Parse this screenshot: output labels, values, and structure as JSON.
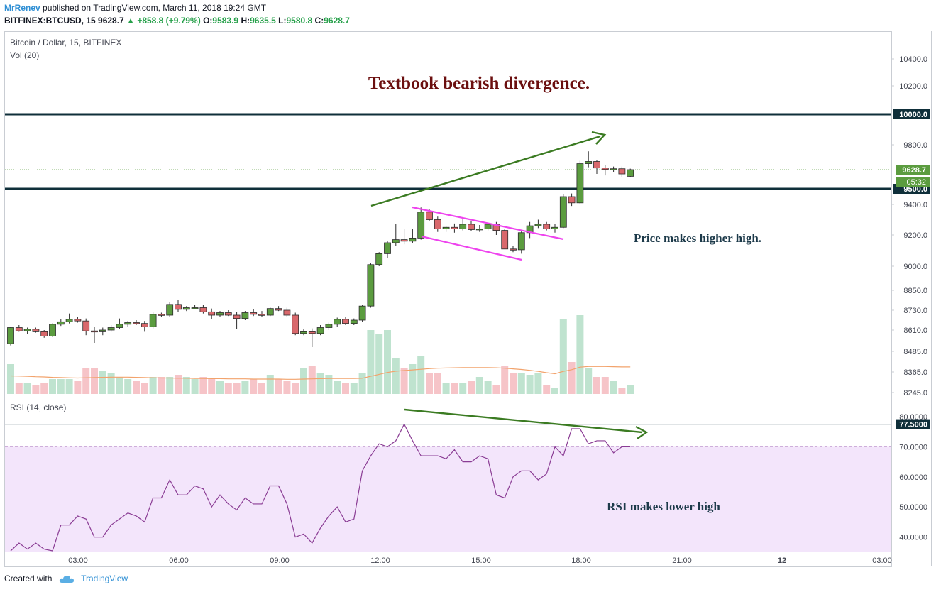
{
  "header": {
    "author": "MrRenev",
    "published": "published on TradingView.com, March 11, 2018 19:24 GMT",
    "symbol": "BITFINEX:BTCUSD, 15",
    "last": "9628.7",
    "change": "+858.8 (+9.79%)",
    "o_label": "O:",
    "o": "9583.9",
    "h_label": "H:",
    "h": "9635.5",
    "l_label": "L:",
    "l": "9580.8",
    "c_label": "C:",
    "c": "9628.7"
  },
  "footer": {
    "created_with": "Created with",
    "brand": "TradingView",
    "icon": "tradingview-cloud-icon"
  },
  "colors": {
    "up": "#5b9c3f",
    "down": "#d9686c",
    "vol_up": "#bfe3cf",
    "vol_down": "#f6c4c8",
    "level": "#0f2f3a",
    "arrow": "#3b7b22",
    "channel": "#ee44ee",
    "rsi": "#8a3c94",
    "rsi_band": "#f3e5fb",
    "ma": "#f2a36c"
  },
  "chart_data": [
    {
      "type": "candlestick",
      "title": "Bitcoin / Dollar, 15, BITFINEX",
      "subtitle": "Vol (20)",
      "annotation_title": "Textbook bearish divergence.",
      "annotation_price": "Price makes higher high.",
      "y_ticks": [
        "10400.0",
        "10200.0",
        "9800.0",
        "9400.0",
        "9200.0",
        "9000.0",
        "8850.0",
        "8730.0",
        "8610.0",
        "8485.0",
        "8365.0",
        "8245.0"
      ],
      "x_ticks": [
        "03:00",
        "06:00",
        "09:00",
        "12:00",
        "15:00",
        "18:00",
        "21:00",
        "12",
        "03:00"
      ],
      "levels": [
        {
          "label": "10000.0",
          "value": 10000
        },
        {
          "label": "9500.0",
          "value": 9500
        }
      ],
      "last_price_label": "9628.7",
      "countdown_label": "05:32",
      "candles": [
        [
          8530,
          8630,
          8520,
          8625
        ],
        [
          8625,
          8640,
          8600,
          8605
        ],
        [
          8605,
          8625,
          8585,
          8615
        ],
        [
          8615,
          8625,
          8595,
          8600
        ],
        [
          8600,
          8610,
          8565,
          8575
        ],
        [
          8575,
          8650,
          8570,
          8645
        ],
        [
          8645,
          8675,
          8635,
          8660
        ],
        [
          8660,
          8710,
          8650,
          8675
        ],
        [
          8675,
          8690,
          8655,
          8665
        ],
        [
          8665,
          8680,
          8580,
          8605
        ],
        [
          8605,
          8630,
          8535,
          8600
        ],
        [
          8600,
          8625,
          8580,
          8610
        ],
        [
          8610,
          8640,
          8600,
          8625
        ],
        [
          8625,
          8680,
          8615,
          8645
        ],
        [
          8645,
          8665,
          8630,
          8655
        ],
        [
          8655,
          8670,
          8640,
          8650
        ],
        [
          8650,
          8665,
          8600,
          8630
        ],
        [
          8630,
          8720,
          8620,
          8705
        ],
        [
          8705,
          8715,
          8690,
          8700
        ],
        [
          8700,
          8780,
          8690,
          8765
        ],
        [
          8765,
          8790,
          8720,
          8735
        ],
        [
          8735,
          8755,
          8725,
          8745
        ],
        [
          8745,
          8760,
          8735,
          8745
        ],
        [
          8745,
          8760,
          8710,
          8720
        ],
        [
          8720,
          8740,
          8675,
          8700
        ],
        [
          8700,
          8725,
          8690,
          8715
        ],
        [
          8715,
          8730,
          8695,
          8700
        ],
        [
          8700,
          8720,
          8615,
          8680
        ],
        [
          8680,
          8725,
          8670,
          8715
        ],
        [
          8715,
          8735,
          8695,
          8705
        ],
        [
          8705,
          8725,
          8690,
          8700
        ],
        [
          8700,
          8745,
          8695,
          8740
        ],
        [
          8740,
          8755,
          8725,
          8730
        ],
        [
          8730,
          8745,
          8690,
          8700
        ],
        [
          8700,
          8715,
          8580,
          8590
        ],
        [
          8590,
          8615,
          8580,
          8600
        ],
        [
          8600,
          8620,
          8510,
          8590
        ],
        [
          8590,
          8640,
          8580,
          8625
        ],
        [
          8625,
          8655,
          8610,
          8645
        ],
        [
          8645,
          8685,
          8630,
          8675
        ],
        [
          8675,
          8690,
          8640,
          8650
        ],
        [
          8650,
          8680,
          8640,
          8670
        ],
        [
          8670,
          8760,
          8660,
          8755
        ],
        [
          8755,
          9020,
          8745,
          9010
        ],
        [
          9010,
          9090,
          9000,
          9080
        ],
        [
          9080,
          9160,
          9050,
          9150
        ],
        [
          9150,
          9270,
          9130,
          9170
        ],
        [
          9170,
          9240,
          9140,
          9160
        ],
        [
          9160,
          9240,
          9150,
          9180
        ],
        [
          9180,
          9380,
          9170,
          9350
        ],
        [
          9350,
          9370,
          9290,
          9300
        ],
        [
          9300,
          9320,
          9220,
          9240
        ],
        [
          9240,
          9260,
          9220,
          9250
        ],
        [
          9250,
          9275,
          9215,
          9240
        ],
        [
          9240,
          9310,
          9230,
          9270
        ],
        [
          9270,
          9290,
          9225,
          9235
        ],
        [
          9235,
          9265,
          9220,
          9240
        ],
        [
          9240,
          9280,
          9230,
          9270
        ],
        [
          9270,
          9285,
          9200,
          9230
        ],
        [
          9230,
          9240,
          9130,
          9110
        ],
        [
          9110,
          9130,
          9090,
          9105
        ],
        [
          9105,
          9230,
          9080,
          9215
        ],
        [
          9215,
          9285,
          9180,
          9260
        ],
        [
          9260,
          9300,
          9245,
          9270
        ],
        [
          9270,
          9285,
          9230,
          9240
        ],
        [
          9240,
          9270,
          9215,
          9250
        ],
        [
          9250,
          9465,
          9245,
          9450
        ],
        [
          9450,
          9470,
          9390,
          9410
        ],
        [
          9410,
          9690,
          9400,
          9670
        ],
        [
          9670,
          9755,
          9645,
          9685
        ],
        [
          9685,
          9695,
          9600,
          9640
        ],
        [
          9640,
          9660,
          9590,
          9630
        ],
        [
          9630,
          9650,
          9610,
          9635
        ],
        [
          9635,
          9650,
          9580,
          9600
        ],
        [
          9583.9,
          9635.5,
          9580.8,
          9628.7
        ]
      ],
      "volume": [
        14,
        5,
        5,
        4,
        5,
        7,
        7,
        7,
        6,
        12,
        12,
        11,
        10,
        8,
        7,
        6,
        5,
        8,
        8,
        8,
        9,
        8,
        7,
        8,
        7,
        6,
        5,
        5,
        6,
        7,
        5,
        9,
        7,
        6,
        5,
        12,
        13,
        10,
        9,
        6,
        5,
        5,
        10,
        30,
        28,
        30,
        17,
        12,
        14,
        18,
        10,
        10,
        5,
        5,
        5,
        6,
        8,
        6,
        4,
        13,
        10,
        10,
        9,
        10,
        4,
        3,
        35,
        15,
        37,
        12,
        8,
        8,
        6,
        3,
        4
      ],
      "volume_ma": [
        8.5,
        8.4,
        8.3,
        8.1,
        8.0,
        7.8,
        7.7,
        7.6,
        7.5,
        7.6,
        7.7,
        7.8,
        7.9,
        7.9,
        7.9,
        7.8,
        7.7,
        7.6,
        7.5,
        7.5,
        7.4,
        7.4,
        7.3,
        7.3,
        7.2,
        7.2,
        7.1,
        7.1,
        7.1,
        7.0,
        7.0,
        7.0,
        7.0,
        6.9,
        6.9,
        7.0,
        7.1,
        7.2,
        7.3,
        7.3,
        7.3,
        7.3,
        7.4,
        8.3,
        9.2,
        10.1,
        10.7,
        11.0,
        11.3,
        11.6,
        11.9,
        12.1,
        12.2,
        12.3,
        12.4,
        12.4,
        12.4,
        12.4,
        12.3,
        12.1,
        11.8,
        11.5,
        11.1,
        10.6,
        10.0,
        9.5,
        10.6,
        11.4,
        12.6,
        12.9,
        12.9,
        12.9,
        12.8,
        12.7,
        12.7
      ],
      "volume_ylim": [
        0,
        50
      ],
      "ylim": [
        8220,
        10500
      ]
    },
    {
      "type": "line",
      "title": "RSI (14, close)",
      "annotation": "RSI makes lower high",
      "y_ticks": [
        "80.0000",
        "70.0000",
        "60.0000",
        "50.0000",
        "40.0000"
      ],
      "level_label": "77.5000",
      "level_value": 77.5,
      "overbought": 70,
      "ylim": [
        35,
        82.5
      ],
      "values": [
        33,
        38,
        36,
        38,
        36,
        33,
        44,
        44,
        47,
        46,
        40,
        40,
        44,
        46,
        48,
        47,
        45,
        53,
        53,
        59,
        54,
        54,
        57,
        56,
        50,
        54,
        51,
        49,
        53,
        51,
        51,
        57,
        57,
        51,
        40,
        41,
        38,
        43,
        47,
        50,
        45,
        46,
        62,
        67,
        71,
        70,
        72,
        77.5,
        72,
        67,
        67,
        67,
        66,
        69,
        65,
        65,
        67,
        66,
        54,
        53,
        60,
        62,
        62,
        59,
        61,
        70,
        67,
        76,
        76,
        71,
        72,
        72,
        68,
        70,
        70
      ]
    }
  ]
}
